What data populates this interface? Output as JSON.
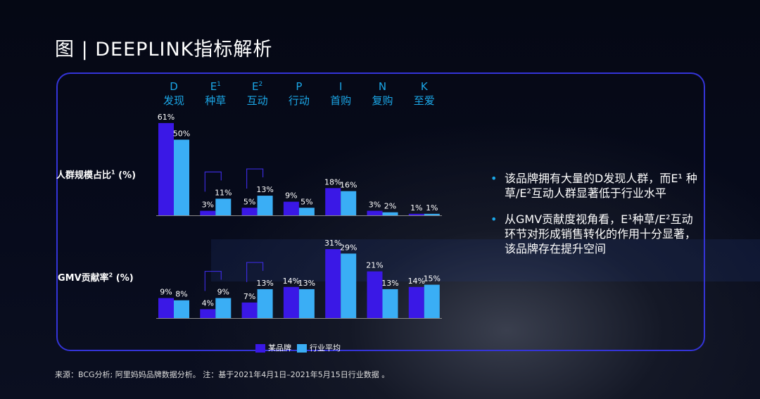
{
  "title": "图 | DEEPLINK指标解析",
  "stages": [
    {
      "letter": "D",
      "sup": "",
      "name": "发现"
    },
    {
      "letter": "E",
      "sup": "1",
      "name": "种草"
    },
    {
      "letter": "E",
      "sup": "2",
      "name": "互动"
    },
    {
      "letter": "P",
      "sup": "",
      "name": "行动"
    },
    {
      "letter": "I",
      "sup": "",
      "name": "首购"
    },
    {
      "letter": "N",
      "sup": "",
      "name": "复购"
    },
    {
      "letter": "K",
      "sup": "",
      "name": "至爱"
    }
  ],
  "colors": {
    "brand": "#3a18e6",
    "industry": "#3aaef5",
    "stage_text": "#1ba6e6",
    "panel_border": "#3434d8"
  },
  "chart_data": [
    {
      "type": "bar",
      "ylabel": "人群规模占比",
      "ylabel_sup": "1",
      "ylabel_unit": "(%)",
      "categories": [
        "D 发现",
        "E1 种草",
        "E2 互动",
        "P 行动",
        "I 首购",
        "N 复购",
        "K 至爱"
      ],
      "series": [
        {
          "name": "某品牌",
          "values": [
            61,
            3,
            5,
            9,
            18,
            3,
            1
          ]
        },
        {
          "name": "行业平均",
          "values": [
            50,
            11,
            13,
            5,
            16,
            2,
            1
          ]
        }
      ],
      "highlight_categories": [
        "E1 种草",
        "E2 互动"
      ],
      "legend": "bottom"
    },
    {
      "type": "bar",
      "ylabel": "GMV贡献率",
      "ylabel_sup": "2",
      "ylabel_unit": "(%)",
      "categories": [
        "D 发现",
        "E1 种草",
        "E2 互动",
        "P 行动",
        "I 首购",
        "N 复购",
        "K 至爱"
      ],
      "series": [
        {
          "name": "某品牌",
          "values": [
            9,
            4,
            7,
            14,
            31,
            21,
            14
          ]
        },
        {
          "name": "行业平均",
          "values": [
            8,
            9,
            13,
            13,
            29,
            13,
            15
          ]
        }
      ],
      "highlight_categories": [
        "E1 种草",
        "E2 互动"
      ],
      "legend": "bottom"
    }
  ],
  "legend": {
    "brand": "某品牌",
    "industry": "行业平均"
  },
  "bullets": [
    "该品牌拥有大量的D发现人群，而E¹ 种草/E²互动人群显著低于行业水平",
    "从GMV贡献度视角看，E¹种草/E²互动环节对形成销售转化的作用十分显著，该品牌存在提升空间"
  ],
  "footnote": "来源：BCG分析; 阿里妈妈品牌数据分析。 注：基于2021年4月1日–2021年5月15日行业数据 。"
}
